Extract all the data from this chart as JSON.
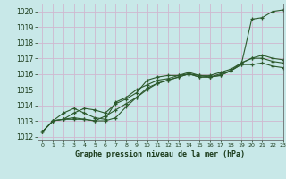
{
  "background_color": "#c8e8e8",
  "grid_color": "#d0b8d0",
  "line_color": "#2d5a2d",
  "xlabel": "Graphe pression niveau de la mer (hPa)",
  "ylim": [
    1011.8,
    1020.5
  ],
  "xlim": [
    -0.5,
    23
  ],
  "yticks": [
    1012,
    1013,
    1014,
    1015,
    1016,
    1017,
    1018,
    1019,
    1020
  ],
  "xticks": [
    0,
    1,
    2,
    3,
    4,
    5,
    6,
    7,
    8,
    9,
    10,
    11,
    12,
    13,
    14,
    15,
    16,
    17,
    18,
    19,
    20,
    21,
    22,
    23
  ],
  "series": [
    [
      1012.3,
      1013.0,
      1013.1,
      1013.5,
      1013.8,
      1013.7,
      1013.5,
      1014.1,
      1014.4,
      1014.8,
      1015.6,
      1015.8,
      1015.9,
      1015.9,
      1016.0,
      1015.9,
      1015.8,
      1016.0,
      1016.2,
      1016.6,
      1019.5,
      1019.6,
      1020.0,
      1020.1
    ],
    [
      1012.3,
      1013.0,
      1013.1,
      1013.2,
      1013.1,
      1013.0,
      1013.0,
      1013.2,
      1013.9,
      1014.5,
      1015.0,
      1015.4,
      1015.6,
      1015.8,
      1016.0,
      1015.8,
      1015.8,
      1015.9,
      1016.2,
      1016.6,
      1016.6,
      1016.7,
      1016.5,
      1016.4
    ],
    [
      1012.3,
      1013.0,
      1013.1,
      1013.1,
      1013.1,
      1013.0,
      1013.3,
      1013.7,
      1014.1,
      1014.5,
      1015.1,
      1015.4,
      1015.6,
      1015.8,
      1016.0,
      1015.8,
      1015.8,
      1015.9,
      1016.2,
      1016.7,
      1017.0,
      1017.0,
      1016.8,
      1016.7
    ],
    [
      1012.3,
      1013.0,
      1013.5,
      1013.8,
      1013.5,
      1013.2,
      1013.1,
      1014.2,
      1014.5,
      1015.0,
      1015.3,
      1015.6,
      1015.7,
      1015.9,
      1016.1,
      1015.9,
      1015.9,
      1016.1,
      1016.3,
      1016.7,
      1017.0,
      1017.2,
      1017.0,
      1016.9
    ]
  ]
}
